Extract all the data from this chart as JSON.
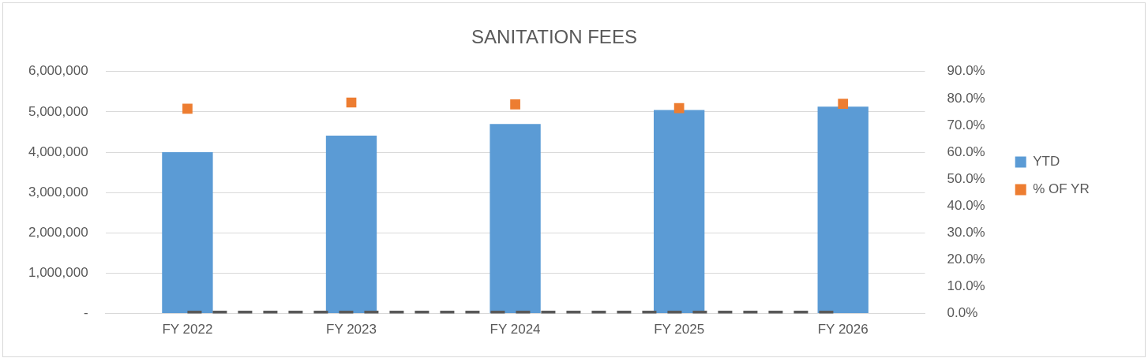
{
  "chart_data": {
    "type": "bar",
    "title": "SANITATION FEES",
    "categories": [
      "FY 2022",
      "FY 2023",
      "FY 2024",
      "FY 2025",
      "FY 2026"
    ],
    "series": [
      {
        "name": "YTD",
        "color": "#5b9bd5",
        "values": [
          4000000,
          4410000,
          4700000,
          5050000,
          5130000
        ]
      },
      {
        "name": "% OF YR",
        "type": "scatter",
        "marker": "square",
        "axis": "y2",
        "color": "#ed7d31",
        "values": [
          76.2,
          78.5,
          77.8,
          76.4,
          78.0
        ]
      },
      {
        "type": "line",
        "color": "#595959",
        "line_style": "dashed",
        "values": [
          0,
          0,
          0,
          0,
          0
        ]
      }
    ],
    "ylim": [
      0,
      6000000
    ],
    "yticks": [
      {
        "value": 0,
        "label": "-"
      },
      {
        "value": 1000000,
        "label": "1,000,000"
      },
      {
        "value": 2000000,
        "label": "2,000,000"
      },
      {
        "value": 3000000,
        "label": "3,000,000"
      },
      {
        "value": 4000000,
        "label": "4,000,000"
      },
      {
        "value": 5000000,
        "label": "5,000,000"
      },
      {
        "value": 6000000,
        "label": "6,000,000"
      }
    ],
    "y2lim": [
      0,
      90
    ],
    "y2ticks": [
      {
        "value": 0,
        "label": "0.0%"
      },
      {
        "value": 10,
        "label": "10.0%"
      },
      {
        "value": 20,
        "label": "20.0%"
      },
      {
        "value": 30,
        "label": "30.0%"
      },
      {
        "value": 40,
        "label": "40.0%"
      },
      {
        "value": 50,
        "label": "50.0%"
      },
      {
        "value": 60,
        "label": "60.0%"
      },
      {
        "value": 70,
        "label": "70.0%"
      },
      {
        "value": 80,
        "label": "80.0%"
      },
      {
        "value": 90,
        "label": "90.0%"
      }
    ],
    "grid": "y",
    "legend": "right"
  }
}
